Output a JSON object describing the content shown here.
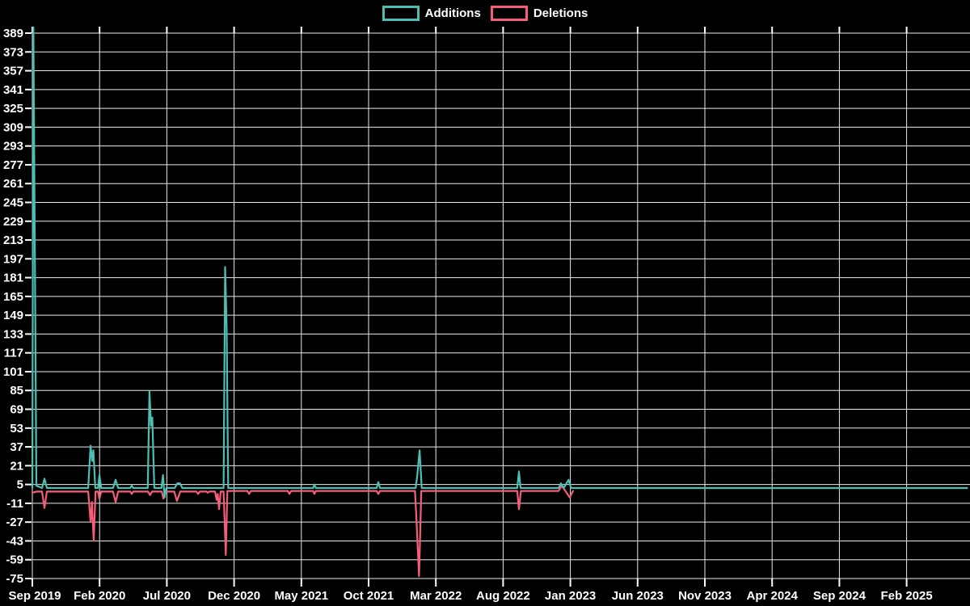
{
  "chart_data": {
    "type": "line",
    "title": "",
    "background": "#000000",
    "grid": true,
    "grid_color": "#EBEBEB",
    "text_color": "#FFFFFF",
    "legend_position": "top-center",
    "legend": [
      {
        "label": "Additions",
        "color": "#4CBFB4"
      },
      {
        "label": "Deletions",
        "color": "#F55D7B"
      }
    ],
    "x_axis": {
      "unit": "months since Sep 2019 (weekly data resolution)",
      "tick_interval_months": 5,
      "tick_labels": [
        "Sep 2019",
        "Feb 2020",
        "Jul 2020",
        "Dec 2020",
        "May 2021",
        "Oct 2021",
        "Mar 2022",
        "Aug 2022",
        "Jan 2023",
        "Jun 2023",
        "Nov 2023",
        "Apr 2024",
        "Sep 2024",
        "Feb 2025"
      ]
    },
    "y_axis": {
      "min": -75,
      "max": 389,
      "step": 16,
      "ticks": [
        389,
        373,
        357,
        341,
        325,
        309,
        293,
        277,
        261,
        245,
        229,
        213,
        197,
        181,
        165,
        149,
        133,
        117,
        101,
        85,
        69,
        53,
        37,
        21,
        5,
        -11,
        -27,
        -43,
        -59,
        -75
      ]
    },
    "series": [
      {
        "name": "Additions",
        "color": "#4CBFB4",
        "points": [
          [
            0,
            2
          ],
          [
            0.08,
            394
          ],
          [
            0.3,
            4
          ],
          [
            0.72,
            2
          ],
          [
            0.9,
            10
          ],
          [
            1.08,
            2
          ],
          [
            4.15,
            2
          ],
          [
            4.33,
            38
          ],
          [
            4.45,
            25
          ],
          [
            4.54,
            34
          ],
          [
            4.68,
            2
          ],
          [
            4.88,
            2
          ],
          [
            4.99,
            13
          ],
          [
            5.12,
            2
          ],
          [
            6.0,
            2
          ],
          [
            6.19,
            9
          ],
          [
            6.38,
            2
          ],
          [
            7.28,
            2
          ],
          [
            7.39,
            4
          ],
          [
            7.5,
            2
          ],
          [
            8.58,
            2
          ],
          [
            8.71,
            84
          ],
          [
            8.83,
            55
          ],
          [
            8.92,
            62
          ],
          [
            9.07,
            2
          ],
          [
            9.6,
            2
          ],
          [
            9.71,
            13
          ],
          [
            9.83,
            -6
          ],
          [
            9.95,
            2
          ],
          [
            10.58,
            2
          ],
          [
            10.78,
            6
          ],
          [
            10.98,
            6
          ],
          [
            11.15,
            2
          ],
          [
            14.22,
            2
          ],
          [
            14.33,
            190
          ],
          [
            14.45,
            139
          ],
          [
            14.56,
            2
          ],
          [
            20.88,
            2
          ],
          [
            20.97,
            5
          ],
          [
            21.08,
            2
          ],
          [
            25.6,
            2
          ],
          [
            25.72,
            7
          ],
          [
            25.85,
            2
          ],
          [
            28.5,
            2
          ],
          [
            28.61,
            12
          ],
          [
            28.79,
            34
          ],
          [
            28.95,
            2
          ],
          [
            36.05,
            2
          ],
          [
            36.18,
            16
          ],
          [
            36.3,
            2
          ],
          [
            39.12,
            2
          ],
          [
            39.3,
            6
          ],
          [
            39.5,
            2
          ],
          [
            39.87,
            9
          ],
          [
            40.05,
            2
          ],
          [
            69.5,
            2
          ]
        ]
      },
      {
        "name": "Deletions",
        "color": "#F55D7B",
        "points": [
          [
            0,
            -2
          ],
          [
            0.3,
            -1
          ],
          [
            0.72,
            -1
          ],
          [
            0.9,
            -15
          ],
          [
            1.08,
            -1
          ],
          [
            4.15,
            -1
          ],
          [
            4.33,
            -27
          ],
          [
            4.43,
            -10
          ],
          [
            4.56,
            -43
          ],
          [
            4.7,
            -1
          ],
          [
            4.88,
            -1
          ],
          [
            4.99,
            -7
          ],
          [
            5.12,
            -1
          ],
          [
            6.0,
            -1
          ],
          [
            6.19,
            -10
          ],
          [
            6.38,
            -1
          ],
          [
            7.28,
            -1
          ],
          [
            7.39,
            -3
          ],
          [
            7.5,
            -1
          ],
          [
            8.6,
            -1
          ],
          [
            8.75,
            -4
          ],
          [
            8.9,
            -1
          ],
          [
            9.62,
            -1
          ],
          [
            9.75,
            -7
          ],
          [
            9.9,
            -1
          ],
          [
            10.55,
            -1
          ],
          [
            10.75,
            -9
          ],
          [
            11.0,
            -1
          ],
          [
            12.2,
            -1
          ],
          [
            12.32,
            -3
          ],
          [
            12.45,
            -1
          ],
          [
            12.95,
            -1
          ],
          [
            13.04,
            -2
          ],
          [
            13.15,
            -1
          ],
          [
            13.58,
            -1
          ],
          [
            13.7,
            -8
          ],
          [
            13.78,
            -3
          ],
          [
            13.88,
            -16
          ],
          [
            14.0,
            -1
          ],
          [
            14.22,
            -1
          ],
          [
            14.3,
            -28
          ],
          [
            14.38,
            -55
          ],
          [
            14.5,
            -0.5
          ],
          [
            16.0,
            -0.5
          ],
          [
            16.11,
            -3
          ],
          [
            16.25,
            -0.5
          ],
          [
            19.0,
            -0.5
          ],
          [
            19.11,
            -3
          ],
          [
            19.25,
            -0.5
          ],
          [
            20.88,
            -0.5
          ],
          [
            20.97,
            -3
          ],
          [
            21.08,
            -0.5
          ],
          [
            25.6,
            -0.5
          ],
          [
            25.72,
            -3
          ],
          [
            25.85,
            -0.5
          ],
          [
            28.45,
            -0.5
          ],
          [
            28.56,
            -25
          ],
          [
            28.65,
            -47
          ],
          [
            28.75,
            -73
          ],
          [
            28.92,
            -0.5
          ],
          [
            36.05,
            -0.5
          ],
          [
            36.18,
            -16
          ],
          [
            36.32,
            -0.5
          ],
          [
            39.12,
            -0.5
          ],
          [
            39.36,
            4
          ],
          [
            39.6,
            0
          ],
          [
            39.95,
            -6
          ],
          [
            40.2,
            -0.5
          ]
        ]
      }
    ]
  }
}
